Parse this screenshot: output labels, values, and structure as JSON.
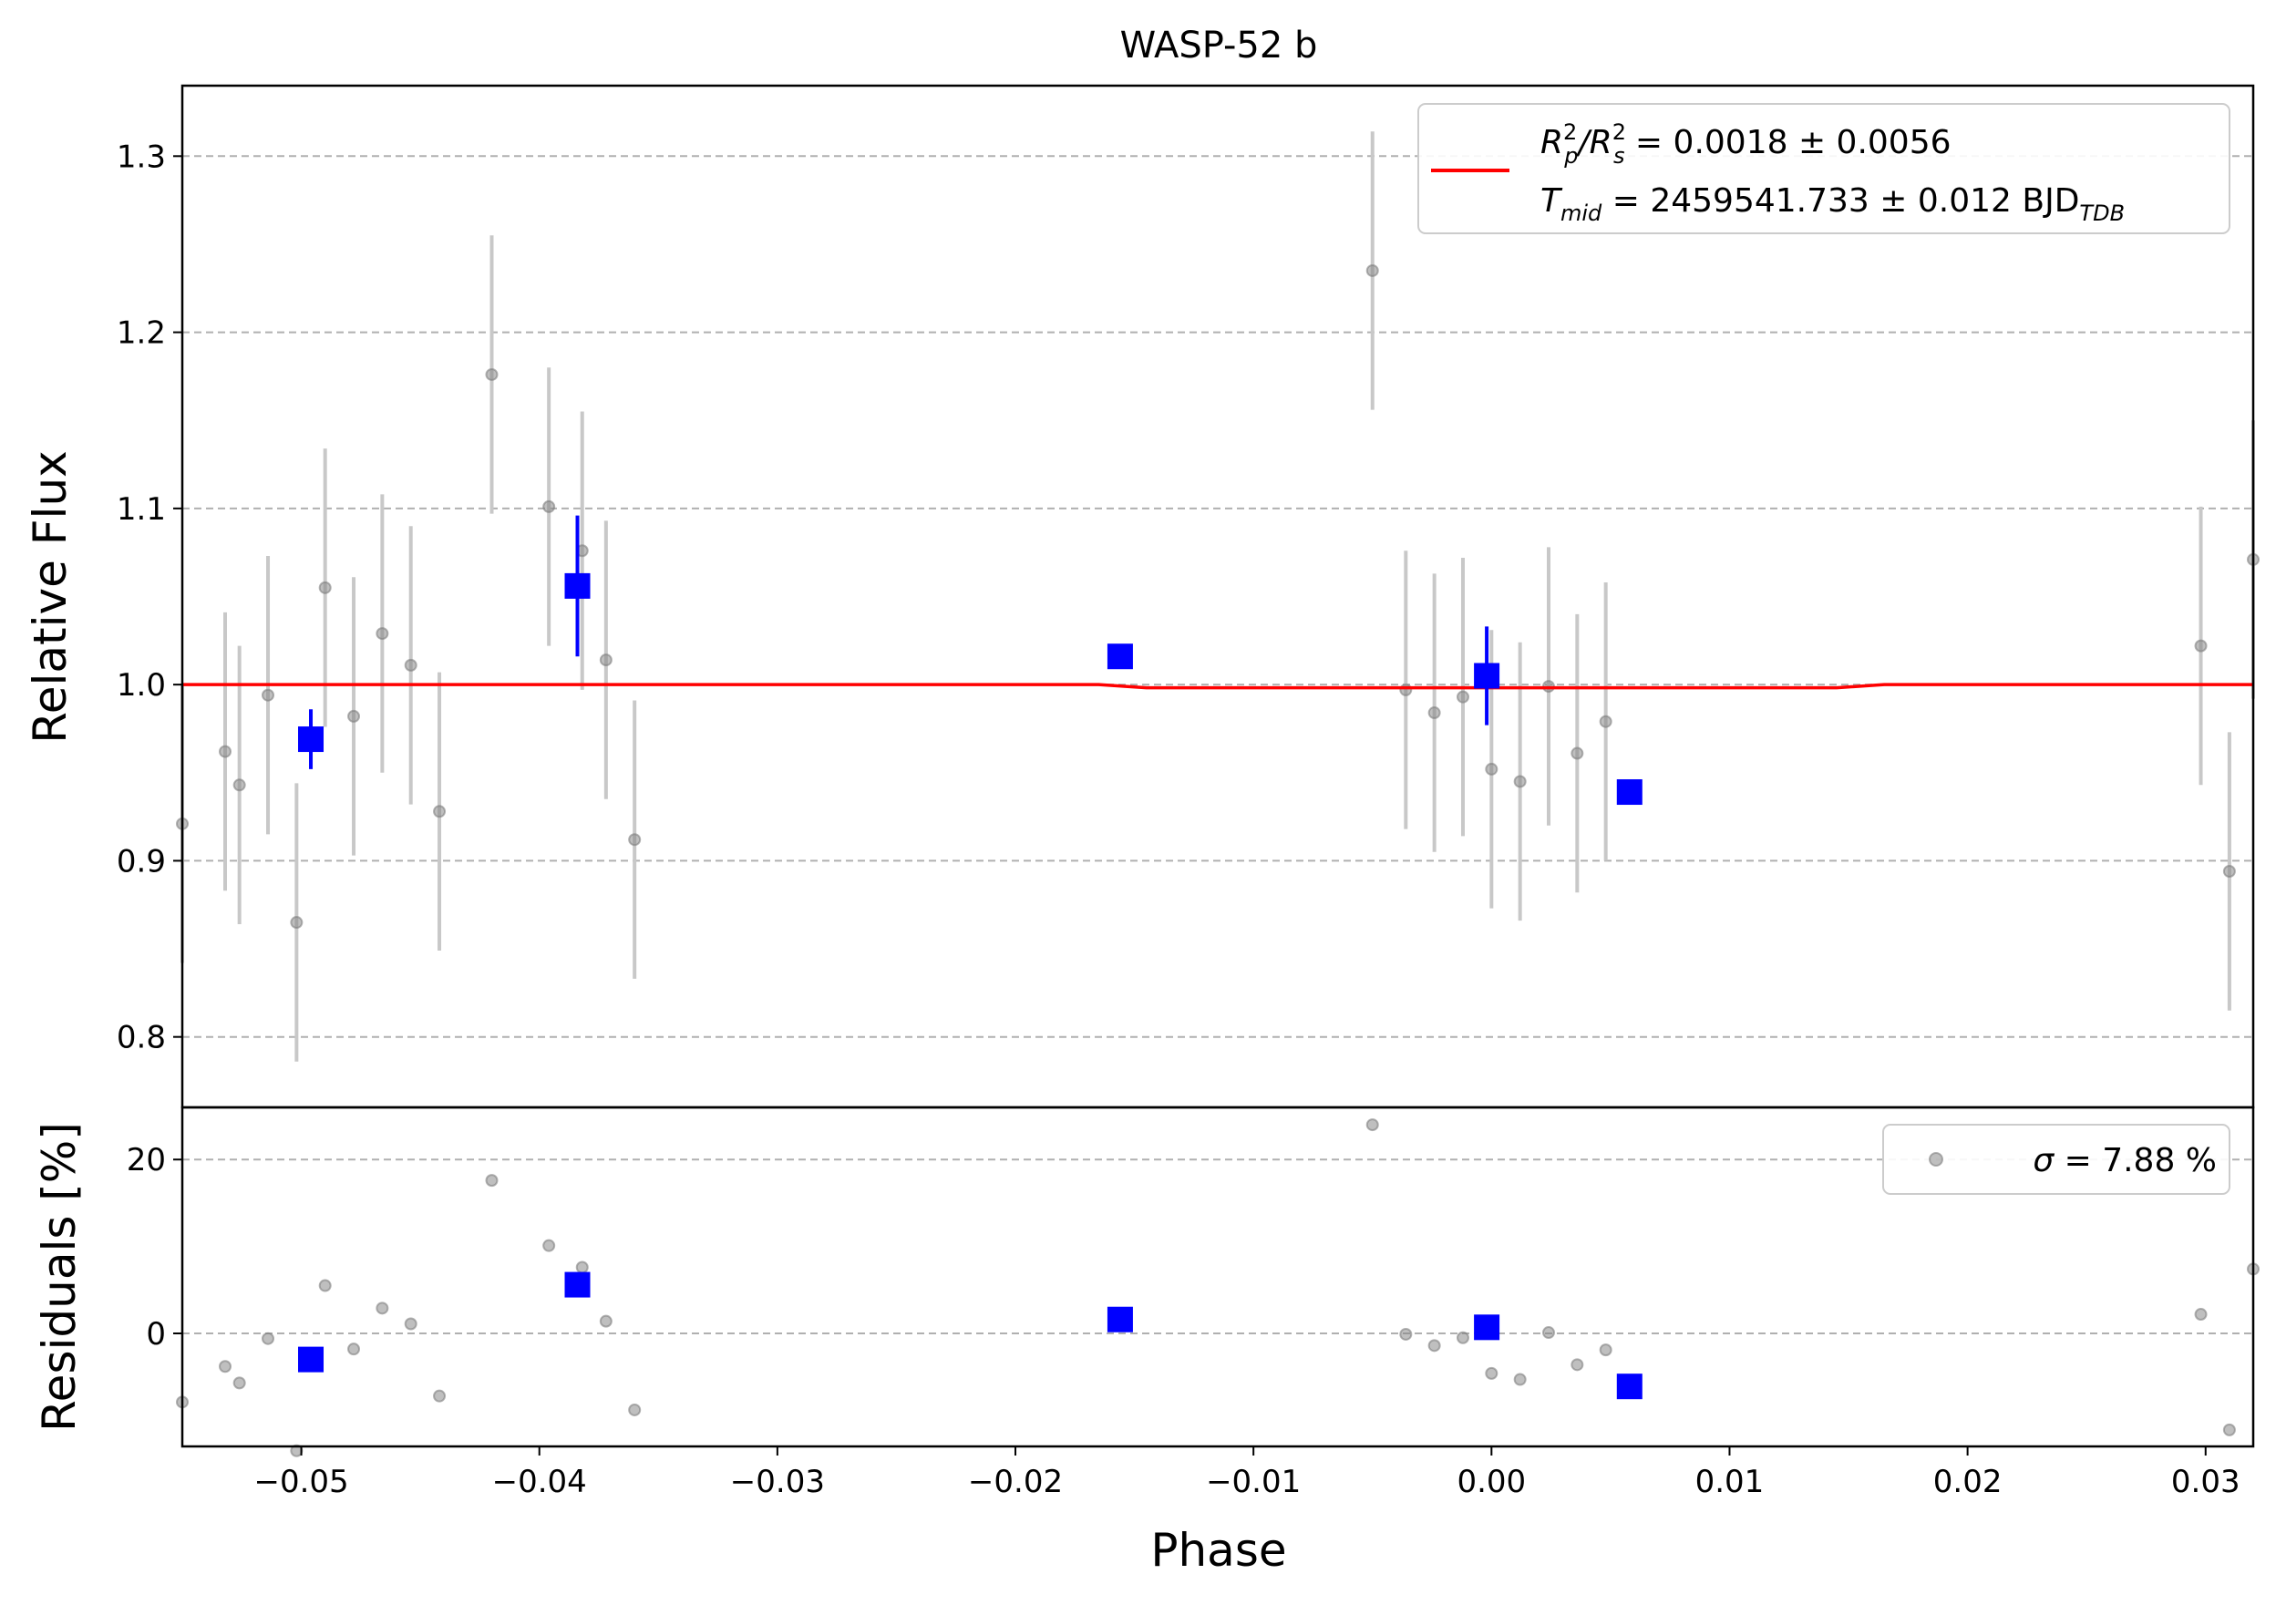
{
  "chart_data": [
    {
      "type": "scatter",
      "panel": "main",
      "title": "WASP-52 b",
      "xlabel": "Phase",
      "ylabel": "Relative Flux",
      "xlim": [
        -0.055,
        0.032
      ],
      "ylim": [
        0.76,
        1.34
      ],
      "yticks": [
        0.8,
        0.9,
        1.0,
        1.1,
        1.2,
        1.3
      ],
      "ytick_labels": [
        "0.8",
        "0.9",
        "1.0",
        "1.1",
        "1.2",
        "1.3"
      ],
      "grid": "horizontal dashed",
      "legend": {
        "position": "top-right",
        "line1_prefix": "R",
        "line1_sub1": "p",
        "line1_sup1": "2",
        "line1_sep": "/R",
        "line1_sub2": "s",
        "line1_sup2": "2",
        "line1_value": " = 0.0018 ± 0.0056",
        "line2_prefix": "T",
        "line2_sub": "mid",
        "line2_value": " = 2459541.733 ± 0.012 BJD",
        "line2_value_sub": "TDB"
      },
      "raw_points": [
        {
          "x": -0.055,
          "y": 0.921,
          "err": 0.079
        },
        {
          "x": -0.0532,
          "y": 0.962,
          "err": 0.079
        },
        {
          "x": -0.0526,
          "y": 0.943,
          "err": 0.079
        },
        {
          "x": -0.0514,
          "y": 0.994,
          "err": 0.079
        },
        {
          "x": -0.0502,
          "y": 0.865,
          "err": 0.079
        },
        {
          "x": -0.049,
          "y": 1.055,
          "err": 0.079
        },
        {
          "x": -0.0478,
          "y": 0.982,
          "err": 0.079
        },
        {
          "x": -0.0466,
          "y": 1.029,
          "err": 0.079
        },
        {
          "x": -0.0454,
          "y": 1.011,
          "err": 0.079
        },
        {
          "x": -0.0442,
          "y": 0.928,
          "err": 0.079
        },
        {
          "x": -0.042,
          "y": 1.176,
          "err": 0.079
        },
        {
          "x": -0.0396,
          "y": 1.101,
          "err": 0.079
        },
        {
          "x": -0.0382,
          "y": 1.076,
          "err": 0.079
        },
        {
          "x": -0.0372,
          "y": 1.014,
          "err": 0.079
        },
        {
          "x": -0.036,
          "y": 0.912,
          "err": 0.079
        },
        {
          "x": -0.005,
          "y": 1.235,
          "err": 0.079
        },
        {
          "x": -0.0036,
          "y": 0.997,
          "err": 0.079
        },
        {
          "x": -0.0024,
          "y": 0.984,
          "err": 0.079
        },
        {
          "x": -0.0012,
          "y": 0.993,
          "err": 0.079
        },
        {
          "x": 0.0,
          "y": 0.952,
          "err": 0.079
        },
        {
          "x": 0.0012,
          "y": 0.945,
          "err": 0.079
        },
        {
          "x": 0.0024,
          "y": 0.999,
          "err": 0.079
        },
        {
          "x": 0.0036,
          "y": 0.961,
          "err": 0.079
        },
        {
          "x": 0.0048,
          "y": 0.979,
          "err": 0.079
        },
        {
          "x": 0.0298,
          "y": 1.022,
          "err": 0.079
        },
        {
          "x": 0.031,
          "y": 0.894,
          "err": 0.079
        },
        {
          "x": 0.032,
          "y": 1.071,
          "err": 0.079
        }
      ],
      "binned_points": [
        {
          "x": -0.0496,
          "y": 0.969,
          "err": 0.017
        },
        {
          "x": -0.0384,
          "y": 1.056,
          "err": 0.04
        },
        {
          "x": -0.0156,
          "y": 1.016,
          "err": 0.0
        },
        {
          "x": -0.0002,
          "y": 1.005,
          "err": 0.028
        },
        {
          "x": 0.0058,
          "y": 0.939,
          "err": 0.0
        }
      ],
      "model": {
        "x": [
          -0.055,
          -0.0165,
          -0.0145,
          0.0145,
          0.0165,
          0.032
        ],
        "y": [
          1.0,
          1.0,
          0.9982,
          0.9982,
          1.0,
          1.0
        ]
      },
      "colors": {
        "model": "#ff0000",
        "binned": "#0000ff",
        "raw": "#808080",
        "errorbar": "#c8c8c8"
      }
    },
    {
      "type": "scatter",
      "panel": "residuals",
      "xlabel": "Phase",
      "ylabel": "Residuals [%]",
      "xlim": [
        -0.055,
        0.032
      ],
      "ylim": [
        -13,
        26
      ],
      "xticks": [
        -0.05,
        -0.04,
        -0.03,
        -0.02,
        -0.01,
        0.0,
        0.01,
        0.02,
        0.03
      ],
      "xtick_labels": [
        "−0.05",
        "−0.04",
        "−0.03",
        "−0.02",
        "−0.01",
        "0.00",
        "0.01",
        "0.02",
        "0.03"
      ],
      "yticks": [
        0,
        20
      ],
      "ytick_labels": [
        "0",
        "20"
      ],
      "grid": "horizontal dashed",
      "legend": {
        "position": "top-right",
        "sigma_symbol": "σ",
        "text": " = 7.88 %"
      },
      "raw_points": [
        {
          "x": -0.055,
          "y": -7.9
        },
        {
          "x": -0.0532,
          "y": -3.8
        },
        {
          "x": -0.0526,
          "y": -5.7
        },
        {
          "x": -0.0514,
          "y": -0.6
        },
        {
          "x": -0.0502,
          "y": -13.5
        },
        {
          "x": -0.049,
          "y": 5.5
        },
        {
          "x": -0.0478,
          "y": -1.8
        },
        {
          "x": -0.0466,
          "y": 2.9
        },
        {
          "x": -0.0454,
          "y": 1.1
        },
        {
          "x": -0.0442,
          "y": -7.2
        },
        {
          "x": -0.042,
          "y": 17.6
        },
        {
          "x": -0.0396,
          "y": 10.1
        },
        {
          "x": -0.0382,
          "y": 7.6
        },
        {
          "x": -0.0372,
          "y": 1.4
        },
        {
          "x": -0.036,
          "y": -8.8
        },
        {
          "x": -0.005,
          "y": 24.0
        },
        {
          "x": -0.0036,
          "y": -0.1
        },
        {
          "x": -0.0024,
          "y": -1.4
        },
        {
          "x": -0.0012,
          "y": -0.5
        },
        {
          "x": 0.0,
          "y": -4.6
        },
        {
          "x": 0.0012,
          "y": -5.3
        },
        {
          "x": 0.0024,
          "y": 0.1
        },
        {
          "x": 0.0036,
          "y": -3.6
        },
        {
          "x": 0.0048,
          "y": -1.9
        },
        {
          "x": 0.0298,
          "y": 2.2
        },
        {
          "x": 0.031,
          "y": -11.1
        },
        {
          "x": 0.032,
          "y": 7.4
        }
      ],
      "binned_points": [
        {
          "x": -0.0496,
          "y": -3.0
        },
        {
          "x": -0.0384,
          "y": 5.6
        },
        {
          "x": -0.0156,
          "y": 1.6
        },
        {
          "x": -0.0002,
          "y": 0.7
        },
        {
          "x": 0.0058,
          "y": -6.1
        }
      ]
    }
  ]
}
